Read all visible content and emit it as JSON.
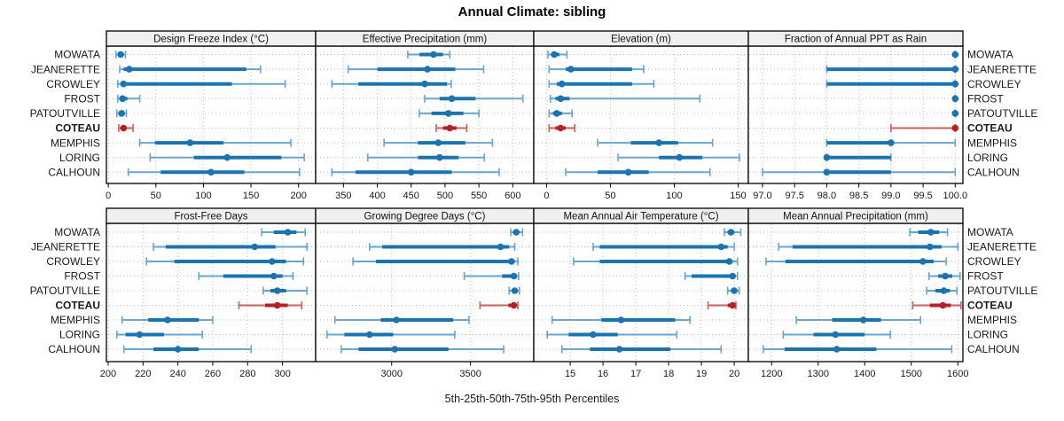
{
  "title": "Annual Climate: sibling",
  "caption": "5th-25th-50th-75th-95th Percentiles",
  "colors": {
    "series": "#1b73b0",
    "series_light": "#69a5cf",
    "highlight": "#b42025",
    "highlight_light": "#c9605c",
    "grid": "#bdbdbd",
    "strip_bg": "#f0f0f0",
    "border": "#000000",
    "text": "#1a1a1a"
  },
  "chart_data": {
    "type": "scatter",
    "subtype": "trellis dot-interval percentile plot, 2 rows x 4 columns",
    "title": "Annual Climate: sibling",
    "caption": "5th-25th-50th-75th-95th Percentiles",
    "categories": [
      "MOWATA",
      "JEANERETTE",
      "CROWLEY",
      "FROST",
      "PATOUTVILLE",
      "COTEAU",
      "MEMPHIS",
      "LORING",
      "CALHOUN"
    ],
    "highlight_category": "COTEAU",
    "percentile_levels": [
      5,
      25,
      50,
      75,
      95
    ],
    "grid": true,
    "panels": [
      {
        "title": "Design Freeze Index (°C)",
        "xlim": [
          -2,
          218
        ],
        "ticks": [
          "0",
          "50",
          "100",
          "150",
          "200"
        ],
        "percentiles": [
          [
            8,
            11,
            13,
            16,
            18
          ],
          [
            12,
            16,
            22,
            145,
            160
          ],
          [
            10,
            13,
            16,
            130,
            186
          ],
          [
            10,
            12,
            15,
            20,
            33
          ],
          [
            9,
            12,
            14,
            17,
            19
          ],
          [
            11,
            14,
            16,
            19,
            26
          ],
          [
            33,
            49,
            86,
            121,
            192
          ],
          [
            44,
            90,
            125,
            182,
            206
          ],
          [
            21,
            55,
            108,
            143,
            201
          ]
        ]
      },
      {
        "title": "Effective Precipitation (mm)",
        "xlim": [
          309,
          631
        ],
        "ticks": [
          "350",
          "400",
          "450",
          "500",
          "550",
          "600"
        ],
        "percentiles": [
          [
            445,
            462,
            483,
            497,
            507
          ],
          [
            357,
            400,
            474,
            515,
            557
          ],
          [
            333,
            372,
            470,
            503,
            509
          ],
          [
            470,
            492,
            510,
            545,
            615
          ],
          [
            462,
            480,
            505,
            527,
            550
          ],
          [
            487,
            497,
            507,
            517,
            532
          ],
          [
            410,
            460,
            490,
            530,
            570
          ],
          [
            386,
            460,
            492,
            520,
            558
          ],
          [
            333,
            368,
            450,
            510,
            580
          ]
        ]
      },
      {
        "title": "Elevation (m)",
        "xlim": [
          -10,
          158
        ],
        "ticks": [
          "0",
          "50",
          "100",
          "150"
        ],
        "percentiles": [
          [
            1,
            4,
            6,
            10,
            16
          ],
          [
            2,
            15,
            19,
            67,
            76
          ],
          [
            2,
            8,
            12,
            67,
            84
          ],
          [
            3,
            7,
            11,
            18,
            120
          ],
          [
            2,
            5,
            8,
            12,
            20
          ],
          [
            2,
            7,
            11,
            15,
            22
          ],
          [
            40,
            66,
            88,
            103,
            130
          ],
          [
            56,
            88,
            104,
            122,
            151
          ],
          [
            15,
            40,
            64,
            80,
            128
          ]
        ]
      },
      {
        "title": "Fraction of Annual PPT as Rain",
        "xlim": [
          96.78,
          100.12
        ],
        "ticks": [
          "97.0",
          "97.5",
          "98.0",
          "98.5",
          "99.0",
          "99.5",
          "100.0"
        ],
        "percentiles": [
          [
            100,
            100,
            100,
            100,
            100
          ],
          [
            98,
            98,
            100,
            100,
            100
          ],
          [
            98,
            98,
            100,
            100,
            100
          ],
          [
            100,
            100,
            100,
            100,
            100
          ],
          [
            100,
            100,
            100,
            100,
            100
          ],
          [
            99,
            100,
            100,
            100,
            100
          ],
          [
            98,
            98,
            99,
            99,
            100
          ],
          [
            98,
            98,
            98,
            99,
            99
          ],
          [
            97,
            98,
            98,
            99,
            100
          ]
        ]
      },
      {
        "title": "Frost-Free Days",
        "xlim": [
          199,
          319
        ],
        "ticks": [
          "200",
          "220",
          "240",
          "260",
          "280",
          "300"
        ],
        "percentiles": [
          [
            288,
            295,
            303,
            308,
            313
          ],
          [
            226,
            233,
            284,
            296,
            314
          ],
          [
            222,
            238,
            294,
            302,
            312
          ],
          [
            252,
            266,
            295,
            300,
            306
          ],
          [
            289,
            293,
            297,
            302,
            314
          ],
          [
            275,
            290,
            297,
            303,
            311
          ],
          [
            208,
            223,
            234,
            252,
            260
          ],
          [
            205,
            210,
            218,
            232,
            254
          ],
          [
            209,
            226,
            240,
            252,
            282
          ]
        ]
      },
      {
        "title": "Growing Degree Days (°C)",
        "xlim": [
          2518,
          3901
        ],
        "ticks": [
          "3000",
          "3500"
        ],
        "percentiles": [
          [
            3755,
            3775,
            3790,
            3805,
            3830
          ],
          [
            2860,
            2940,
            3690,
            3745,
            3780
          ],
          [
            2755,
            2900,
            3760,
            3780,
            3800
          ],
          [
            3460,
            3700,
            3775,
            3790,
            3805
          ],
          [
            3745,
            3765,
            3780,
            3795,
            3810
          ],
          [
            3560,
            3740,
            3775,
            3790,
            3800
          ],
          [
            2640,
            2930,
            3030,
            3390,
            3490
          ],
          [
            2590,
            2700,
            2860,
            3010,
            3400
          ],
          [
            2680,
            2790,
            3020,
            3360,
            3710
          ]
        ]
      },
      {
        "title": "Mean Annual Air Temperature (°C)",
        "xlim": [
          13.89,
          20.43
        ],
        "ticks": [
          "15",
          "16",
          "17",
          "18",
          "19",
          "20"
        ],
        "percentiles": [
          [
            19.7,
            19.8,
            19.9,
            20.0,
            20.2
          ],
          [
            15.7,
            15.9,
            19.6,
            19.8,
            20.0
          ],
          [
            15.1,
            15.9,
            19.85,
            19.95,
            20.1
          ],
          [
            18.5,
            18.7,
            19.95,
            20.0,
            20.1
          ],
          [
            19.8,
            19.9,
            20.0,
            20.05,
            20.15
          ],
          [
            19.2,
            19.8,
            19.95,
            20.0,
            20.05
          ],
          [
            14.45,
            15.95,
            16.55,
            18.2,
            18.65
          ],
          [
            14.3,
            14.95,
            15.7,
            16.45,
            18.25
          ],
          [
            14.75,
            15.6,
            16.5,
            18.05,
            19.6
          ]
        ]
      },
      {
        "title": "Mean Annual Precipitation (mm)",
        "xlim": [
          1150,
          1611
        ],
        "ticks": [
          "1200",
          "1300",
          "1400",
          "1500",
          "1600"
        ],
        "percentiles": [
          [
            1497,
            1515,
            1542,
            1560,
            1578
          ],
          [
            1215,
            1245,
            1540,
            1565,
            1600
          ],
          [
            1188,
            1230,
            1525,
            1548,
            1575
          ],
          [
            1538,
            1558,
            1573,
            1588,
            1605
          ],
          [
            1533,
            1552,
            1570,
            1583,
            1598
          ],
          [
            1503,
            1540,
            1568,
            1585,
            1607
          ],
          [
            1253,
            1330,
            1397,
            1435,
            1520
          ],
          [
            1225,
            1290,
            1337,
            1400,
            1455
          ],
          [
            1182,
            1228,
            1340,
            1425,
            1587
          ]
        ]
      }
    ]
  }
}
